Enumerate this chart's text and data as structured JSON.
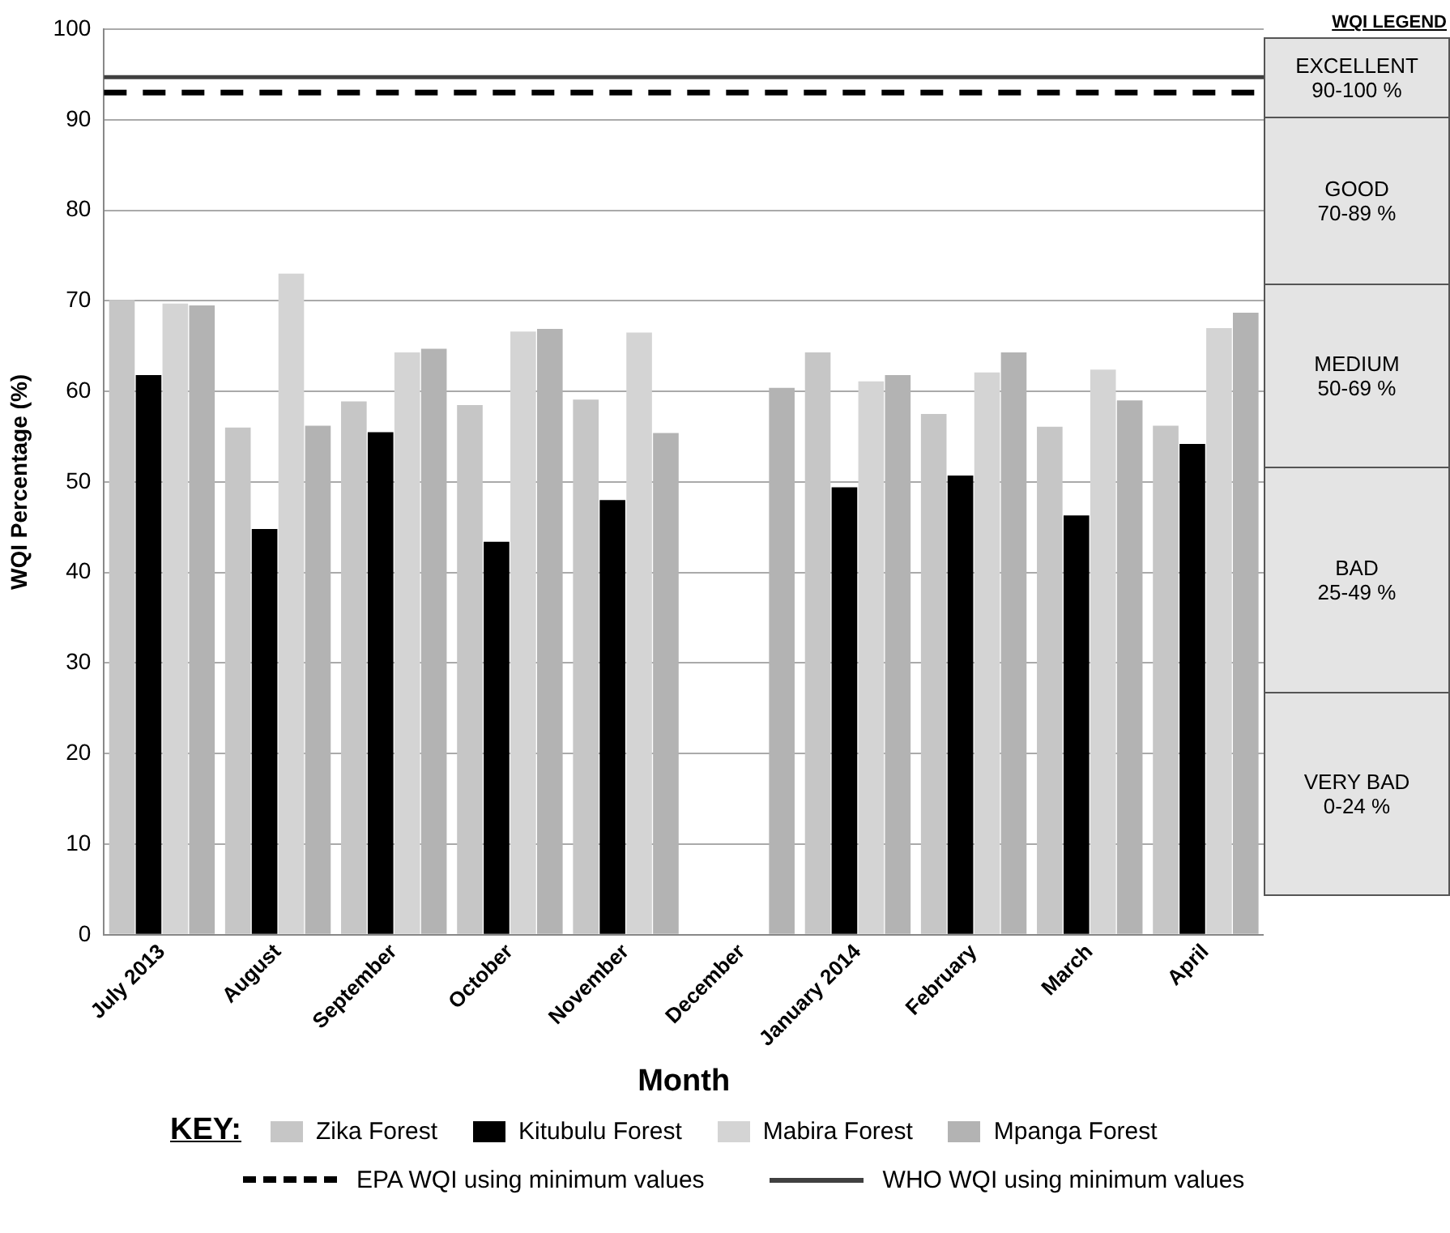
{
  "chart_data": {
    "type": "bar",
    "xlabel": "Month",
    "ylabel": "WQI Percentage (%)",
    "categories": [
      "July 2013",
      "August",
      "September",
      "October",
      "November",
      "December",
      "January 2014",
      "February",
      "March",
      "April"
    ],
    "series": [
      {
        "name": "Zika Forest",
        "color": "#c6c6c6",
        "values": [
          70.1,
          56.0,
          58.9,
          58.5,
          59.1,
          null,
          64.3,
          57.5,
          56.1,
          56.2
        ]
      },
      {
        "name": "Kitubulu Forest",
        "color": "#000000",
        "values": [
          61.8,
          44.8,
          55.5,
          43.4,
          48.0,
          null,
          49.4,
          50.7,
          46.3,
          54.2
        ]
      },
      {
        "name": "Mabira Forest",
        "color": "#d4d4d4",
        "values": [
          69.7,
          73.0,
          64.3,
          66.6,
          66.5,
          null,
          61.1,
          62.1,
          62.4,
          67.0
        ]
      },
      {
        "name": "Mpanga Forest",
        "color": "#b3b3b3",
        "values": [
          69.5,
          56.2,
          64.7,
          66.9,
          55.4,
          60.4,
          61.8,
          64.3,
          59.0,
          68.7
        ]
      }
    ],
    "ylim": [
      0,
      100
    ],
    "yticks": [
      0,
      10,
      20,
      30,
      40,
      50,
      60,
      70,
      80,
      90,
      100
    ],
    "grid": "y",
    "legend": "bottom",
    "ref_lines": [
      {
        "axis": "y",
        "value": 93.0,
        "label": "EPA WQI using minimum values",
        "color": "#000000",
        "line_style": "dashed"
      },
      {
        "axis": "y",
        "value": 94.7,
        "label": "WHO WQI using minimum values",
        "color": "#404040",
        "line_style": "solid"
      }
    ],
    "annotations": [
      "KEY:",
      "WQI LEGEND",
      "EXCELLENT\n90-100 %",
      "GOOD\n70-89 %",
      "MEDIUM\n50-69 %",
      "BAD\n25-49 %",
      "VERY BAD\n0-24 %"
    ]
  }
}
